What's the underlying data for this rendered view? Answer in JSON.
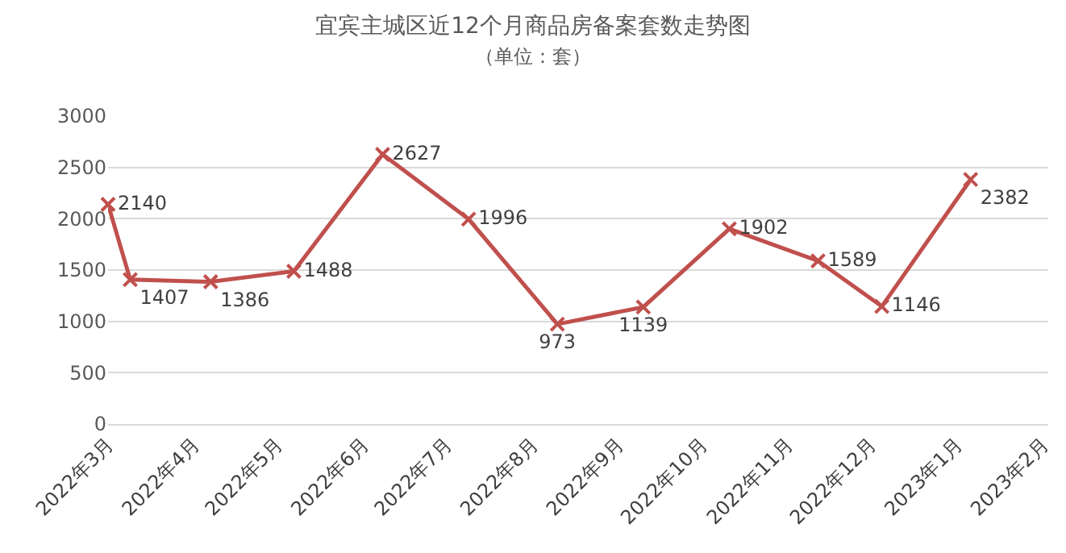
{
  "chart_data": {
    "type": "line",
    "title": "宜宾主城区近12个月商品房备案套数走势图",
    "subtitle": "（单位：套）",
    "x": [
      "2022-03-01",
      "2022-03-09",
      "2022-04-07",
      "2022-05-07",
      "2022-06-08",
      "2022-07-09",
      "2022-08-10",
      "2022-09-10",
      "2022-10-11",
      "2022-11-12",
      "2022-12-05",
      "2023-01-06"
    ],
    "series": [
      {
        "color": "#c0504d",
        "values": [
          2140,
          1407,
          1386,
          1488,
          2627,
          1996,
          973,
          1139,
          1902,
          1589,
          1146,
          2382
        ]
      }
    ],
    "xlim": [
      "2022-03-01",
      "2023-02-03"
    ],
    "xticks": [
      {
        "value": "2022-03-01",
        "label": "2022年3月"
      },
      {
        "value": "2022-04-01",
        "label": "2022年4月"
      },
      {
        "value": "2022-05-01",
        "label": "2022年5月"
      },
      {
        "value": "2022-06-01",
        "label": "2022年6月"
      },
      {
        "value": "2022-07-01",
        "label": "2022年7月"
      },
      {
        "value": "2022-08-01",
        "label": "2022年8月"
      },
      {
        "value": "2022-09-01",
        "label": "2022年9月"
      },
      {
        "value": "2022-10-01",
        "label": "2022年10月"
      },
      {
        "value": "2022-11-01",
        "label": "2022年11月"
      },
      {
        "value": "2022-12-01",
        "label": "2022年12月"
      },
      {
        "value": "2023-01-01",
        "label": "2023年1月"
      },
      {
        "value": "2023-02-01",
        "label": "2023年2月"
      }
    ],
    "ylim": [
      0,
      3000
    ],
    "yticks": [
      0,
      500,
      1000,
      1500,
      2000,
      2500,
      3000
    ],
    "grid": "y",
    "marker": "cross",
    "line_style": "solid",
    "data_labels": true
  }
}
